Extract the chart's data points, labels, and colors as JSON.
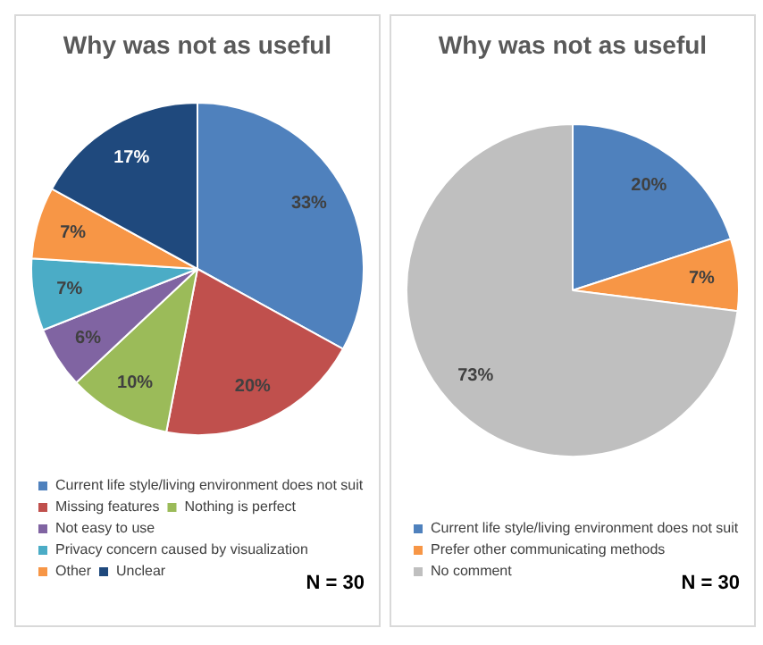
{
  "chart_data": [
    {
      "type": "pie",
      "title": "Why was not as useful",
      "categories": [
        "Current life style/living environment does not suit",
        "Missing features",
        "Nothing is perfect",
        "Not easy to use",
        "Privacy concern caused by visualization",
        "Other",
        "Unclear"
      ],
      "values": [
        33,
        20,
        10,
        6,
        7,
        7,
        17
      ],
      "colors": [
        "#4f81bd",
        "#c0504d",
        "#9bbb59",
        "#8064a2",
        "#4bacc6",
        "#f79646",
        "#1f497d"
      ],
      "value_labels": [
        "33%",
        "20%",
        "10%",
        "6%",
        "7%",
        "7%",
        "17%"
      ],
      "legend": "bottom",
      "annotations": [
        "N = 30"
      ]
    },
    {
      "type": "pie",
      "title": "Why was not as useful",
      "categories": [
        "Current life style/living environment does not suit",
        "Prefer other communicating methods",
        "No comment"
      ],
      "values": [
        20,
        7,
        73
      ],
      "colors": [
        "#4f81bd",
        "#f79646",
        "#bfbfbf"
      ],
      "value_labels": [
        "20%",
        "7%",
        "73%"
      ],
      "legend": "bottom",
      "annotations": [
        "N = 30"
      ]
    }
  ]
}
